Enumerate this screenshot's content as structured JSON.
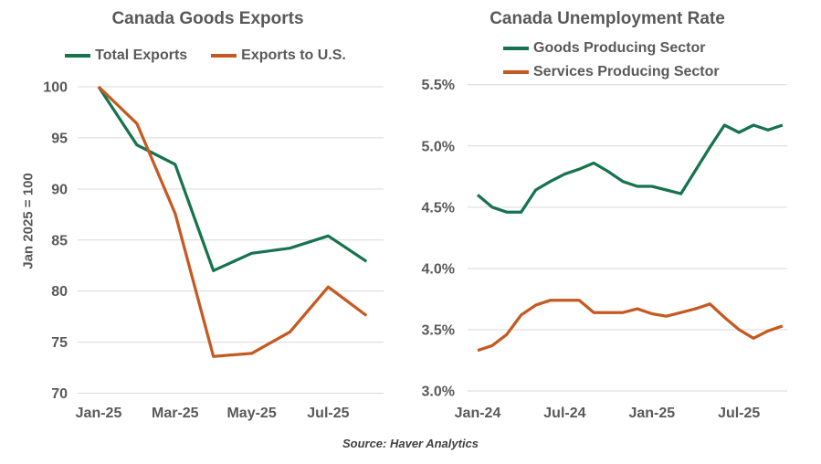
{
  "source_note": "Source: Haver Analytics",
  "colors": {
    "green_series": "#16734E",
    "orange_series": "#C45A21",
    "gridline": "#D9D9D9",
    "axis_text": "#595959",
    "title_text": "#595959"
  },
  "chart_data": [
    {
      "type": "line",
      "title": "Canada Goods Exports",
      "y_axis_title": "Jan 2025 = 100",
      "grid": true,
      "legend_position": "top-center-horizontal",
      "categories": [
        "Jan-25",
        "Feb-25",
        "Mar-25",
        "Apr-25",
        "May-25",
        "Jun-25",
        "Jul-25",
        "Aug-25"
      ],
      "x_tick_labels": [
        {
          "index": 0,
          "label": "Jan-25"
        },
        {
          "index": 2,
          "label": "Mar-25"
        },
        {
          "index": 4,
          "label": "May-25"
        },
        {
          "index": 6,
          "label": "Jul-25"
        }
      ],
      "ylim": [
        70,
        100
      ],
      "y_ticks": [
        {
          "value": 100,
          "label": "100"
        },
        {
          "value": 95,
          "label": "95"
        },
        {
          "value": 90,
          "label": "90"
        },
        {
          "value": 85,
          "label": "85"
        },
        {
          "value": 80,
          "label": "80"
        },
        {
          "value": 75,
          "label": "75"
        },
        {
          "value": 70,
          "label": "70"
        }
      ],
      "series": [
        {
          "name": "Total Exports",
          "color": "#16734E",
          "values": [
            100,
            94.3,
            92.4,
            82.0,
            83.7,
            84.2,
            85.4,
            82.9
          ]
        },
        {
          "name": "Exports to U.S.",
          "color": "#C45A21",
          "values": [
            100,
            96.4,
            87.6,
            73.6,
            73.9,
            76.0,
            80.4,
            77.6
          ]
        }
      ]
    },
    {
      "type": "line",
      "title": "Canada Unemployment Rate",
      "y_axis_title": "",
      "grid": true,
      "legend_position": "top-left-vertical",
      "categories": [
        "Jan-24",
        "Feb-24",
        "Mar-24",
        "Apr-24",
        "May-24",
        "Jun-24",
        "Jul-24",
        "Aug-24",
        "Sep-24",
        "Oct-24",
        "Nov-24",
        "Dec-24",
        "Jan-25",
        "Feb-25",
        "Mar-25",
        "Apr-25",
        "May-25",
        "Jun-25",
        "Jul-25",
        "Aug-25",
        "Sep-25",
        "Oct-25"
      ],
      "x_tick_labels": [
        {
          "index": 0,
          "label": "Jan-24"
        },
        {
          "index": 6,
          "label": "Jul-24"
        },
        {
          "index": 12,
          "label": "Jan-25"
        },
        {
          "index": 18,
          "label": "Jul-25"
        }
      ],
      "ylim": [
        3.0,
        5.5
      ],
      "y_ticks": [
        {
          "value": 5.5,
          "label": "5.5%"
        },
        {
          "value": 5.0,
          "label": "5.0%"
        },
        {
          "value": 4.5,
          "label": "4.5%"
        },
        {
          "value": 4.0,
          "label": "4.0%"
        },
        {
          "value": 3.5,
          "label": "3.5%"
        },
        {
          "value": 3.0,
          "label": "3.0%"
        }
      ],
      "series": [
        {
          "name": "Goods Producing Sector",
          "color": "#16734E",
          "values": [
            4.6,
            4.5,
            4.46,
            4.46,
            4.64,
            4.71,
            4.77,
            4.81,
            4.86,
            4.79,
            4.71,
            4.67,
            4.67,
            4.64,
            4.61,
            4.8,
            4.99,
            5.17,
            5.11,
            5.17,
            5.13,
            5.17
          ]
        },
        {
          "name": "Services Producing Sector",
          "color": "#C45A21",
          "values": [
            3.33,
            3.37,
            3.46,
            3.62,
            3.7,
            3.74,
            3.74,
            3.74,
            3.64,
            3.64,
            3.64,
            3.67,
            3.63,
            3.61,
            3.64,
            3.67,
            3.71,
            3.6,
            3.5,
            3.43,
            3.49,
            3.53
          ]
        }
      ]
    }
  ]
}
